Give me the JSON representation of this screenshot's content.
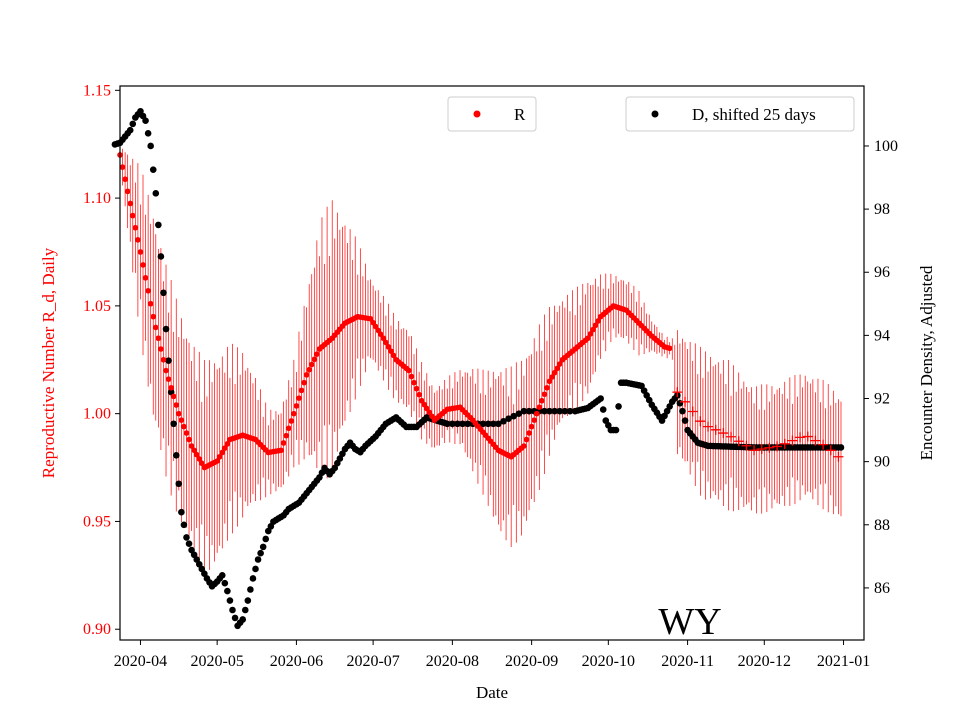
{
  "chart_data": {
    "type": "scatter",
    "title": "",
    "annotation": "WY",
    "xlabel": "Date",
    "ylabel_left": "Reproductive Number R_d, Daily",
    "ylabel_right": "Encounter Density, Adjusted",
    "x_ticks": [
      "2020-04",
      "2020-05",
      "2020-06",
      "2020-07",
      "2020-08",
      "2020-09",
      "2020-10",
      "2020-11",
      "2020-12",
      "2021-01"
    ],
    "x_range_days": [
      -8,
      283
    ],
    "y_left_range": [
      0.895,
      1.152
    ],
    "y_left_ticks": [
      "0.90",
      "0.95",
      "1.00",
      "1.05",
      "1.10",
      "1.15"
    ],
    "y_right_range": [
      84.35,
      101.9
    ],
    "y_right_ticks": [
      "86",
      "88",
      "90",
      "92",
      "94",
      "96",
      "98",
      "100"
    ],
    "legend": [
      {
        "label": "R",
        "color": "#ff0000",
        "position": "upper-center"
      },
      {
        "label": "D, shifted 25 days",
        "color": "#000000",
        "position": "upper-right"
      }
    ],
    "colors": {
      "R": "#ff0000",
      "D": "#000000",
      "axis_left": "#ff0000"
    },
    "series_R": {
      "name": "R",
      "marker": "dot (estimate), plus (projection after day ~208)",
      "plus_marker_start_day": 208,
      "end_day": 274,
      "knots": [
        [
          -10,
          1.12,
          0.005
        ],
        [
          -8,
          1.12,
          0.006
        ],
        [
          0,
          1.075,
          0.04
        ],
        [
          5,
          1.045,
          0.05
        ],
        [
          10,
          1.02,
          0.05
        ],
        [
          15,
          1.0,
          0.05
        ],
        [
          20,
          0.985,
          0.05
        ],
        [
          25,
          0.975,
          0.05
        ],
        [
          30,
          0.978,
          0.05
        ],
        [
          35,
          0.988,
          0.045
        ],
        [
          40,
          0.99,
          0.04
        ],
        [
          45,
          0.988,
          0.03
        ],
        [
          50,
          0.982,
          0.02
        ],
        [
          55,
          0.983,
          0.02
        ],
        [
          60,
          1.0,
          0.025
        ],
        [
          65,
          1.018,
          0.04
        ],
        [
          70,
          1.03,
          0.06
        ],
        [
          75,
          1.035,
          0.065
        ],
        [
          80,
          1.042,
          0.05
        ],
        [
          85,
          1.045,
          0.035
        ],
        [
          90,
          1.044,
          0.02
        ],
        [
          95,
          1.035,
          0.02
        ],
        [
          100,
          1.025,
          0.02
        ],
        [
          105,
          1.02,
          0.02
        ],
        [
          110,
          1.006,
          0.018
        ],
        [
          115,
          0.997,
          0.015
        ],
        [
          120,
          1.002,
          0.015
        ],
        [
          125,
          1.003,
          0.018
        ],
        [
          130,
          0.997,
          0.025
        ],
        [
          135,
          0.99,
          0.03
        ],
        [
          140,
          0.983,
          0.04
        ],
        [
          145,
          0.98,
          0.042
        ],
        [
          150,
          0.985,
          0.042
        ],
        [
          155,
          1.0,
          0.04
        ],
        [
          160,
          1.015,
          0.035
        ],
        [
          165,
          1.025,
          0.03
        ],
        [
          170,
          1.03,
          0.028
        ],
        [
          175,
          1.035,
          0.028
        ],
        [
          180,
          1.045,
          0.02
        ],
        [
          185,
          1.05,
          0.015
        ],
        [
          190,
          1.048,
          0.015
        ],
        [
          195,
          1.042,
          0.015
        ],
        [
          200,
          1.036,
          0.008
        ],
        [
          205,
          1.031,
          0.005
        ],
        [
          208,
          1.03,
          0.005
        ],
        [
          210,
          1.01,
          0.03
        ],
        [
          220,
          0.995,
          0.035
        ],
        [
          230,
          0.99,
          0.035
        ],
        [
          240,
          0.983,
          0.03
        ],
        [
          250,
          0.985,
          0.03
        ],
        [
          260,
          0.99,
          0.03
        ],
        [
          268,
          0.985,
          0.03
        ],
        [
          274,
          0.979,
          0.03
        ]
      ]
    },
    "series_D": {
      "name": "D, shifted 25 days",
      "marker": "dot",
      "knots": [
        [
          -10,
          100.05
        ],
        [
          -8,
          100.1
        ],
        [
          -4,
          100.5
        ],
        [
          -2,
          100.9
        ],
        [
          0,
          101.1
        ],
        [
          2,
          100.8
        ],
        [
          4,
          100.0
        ],
        [
          6,
          98.5
        ],
        [
          8,
          96.5
        ],
        [
          10,
          94.2
        ],
        [
          12,
          92.2
        ],
        [
          14,
          90.2
        ],
        [
          16,
          88.4
        ],
        [
          18,
          87.6
        ],
        [
          20,
          87.2
        ],
        [
          22,
          86.9
        ],
        [
          24,
          86.6
        ],
        [
          26,
          86.3
        ],
        [
          28,
          86.05
        ],
        [
          30,
          86.2
        ],
        [
          32,
          86.4
        ],
        [
          34,
          85.9
        ],
        [
          36,
          85.3
        ],
        [
          38,
          84.8
        ],
        [
          40,
          85.0
        ],
        [
          42,
          85.6
        ],
        [
          44,
          86.3
        ],
        [
          46,
          86.9
        ],
        [
          48,
          87.3
        ],
        [
          50,
          87.8
        ],
        [
          52,
          88.1
        ],
        [
          54,
          88.2
        ],
        [
          56,
          88.3
        ],
        [
          58,
          88.5
        ],
        [
          62,
          88.7
        ],
        [
          66,
          89.1
        ],
        [
          70,
          89.5
        ],
        [
          72,
          89.8
        ],
        [
          74,
          89.6
        ],
        [
          76,
          89.8
        ],
        [
          78,
          90.1
        ],
        [
          80,
          90.4
        ],
        [
          82,
          90.6
        ],
        [
          84,
          90.4
        ],
        [
          86,
          90.3
        ],
        [
          88,
          90.5
        ],
        [
          92,
          90.8
        ],
        [
          96,
          91.2
        ],
        [
          100,
          91.4
        ],
        [
          104,
          91.1
        ],
        [
          108,
          91.1
        ],
        [
          112,
          91.4
        ],
        [
          116,
          91.3
        ],
        [
          120,
          91.2
        ],
        [
          130,
          91.2
        ],
        [
          140,
          91.2
        ],
        [
          145,
          91.4
        ],
        [
          150,
          91.6
        ],
        [
          160,
          91.6
        ],
        [
          170,
          91.6
        ],
        [
          175,
          91.7
        ],
        [
          180,
          92.0
        ],
        [
          182,
          91.3
        ],
        [
          184,
          91.0
        ],
        [
          186,
          91.0
        ],
        [
          188,
          92.5
        ],
        [
          190,
          92.5
        ],
        [
          196,
          92.4
        ],
        [
          200,
          91.8
        ],
        [
          204,
          91.3
        ],
        [
          208,
          91.9
        ],
        [
          210,
          92.1
        ],
        [
          212,
          91.6
        ],
        [
          214,
          91.0
        ],
        [
          218,
          90.6
        ],
        [
          222,
          90.5
        ],
        [
          240,
          90.45
        ],
        [
          260,
          90.45
        ],
        [
          274,
          90.45
        ]
      ]
    }
  }
}
